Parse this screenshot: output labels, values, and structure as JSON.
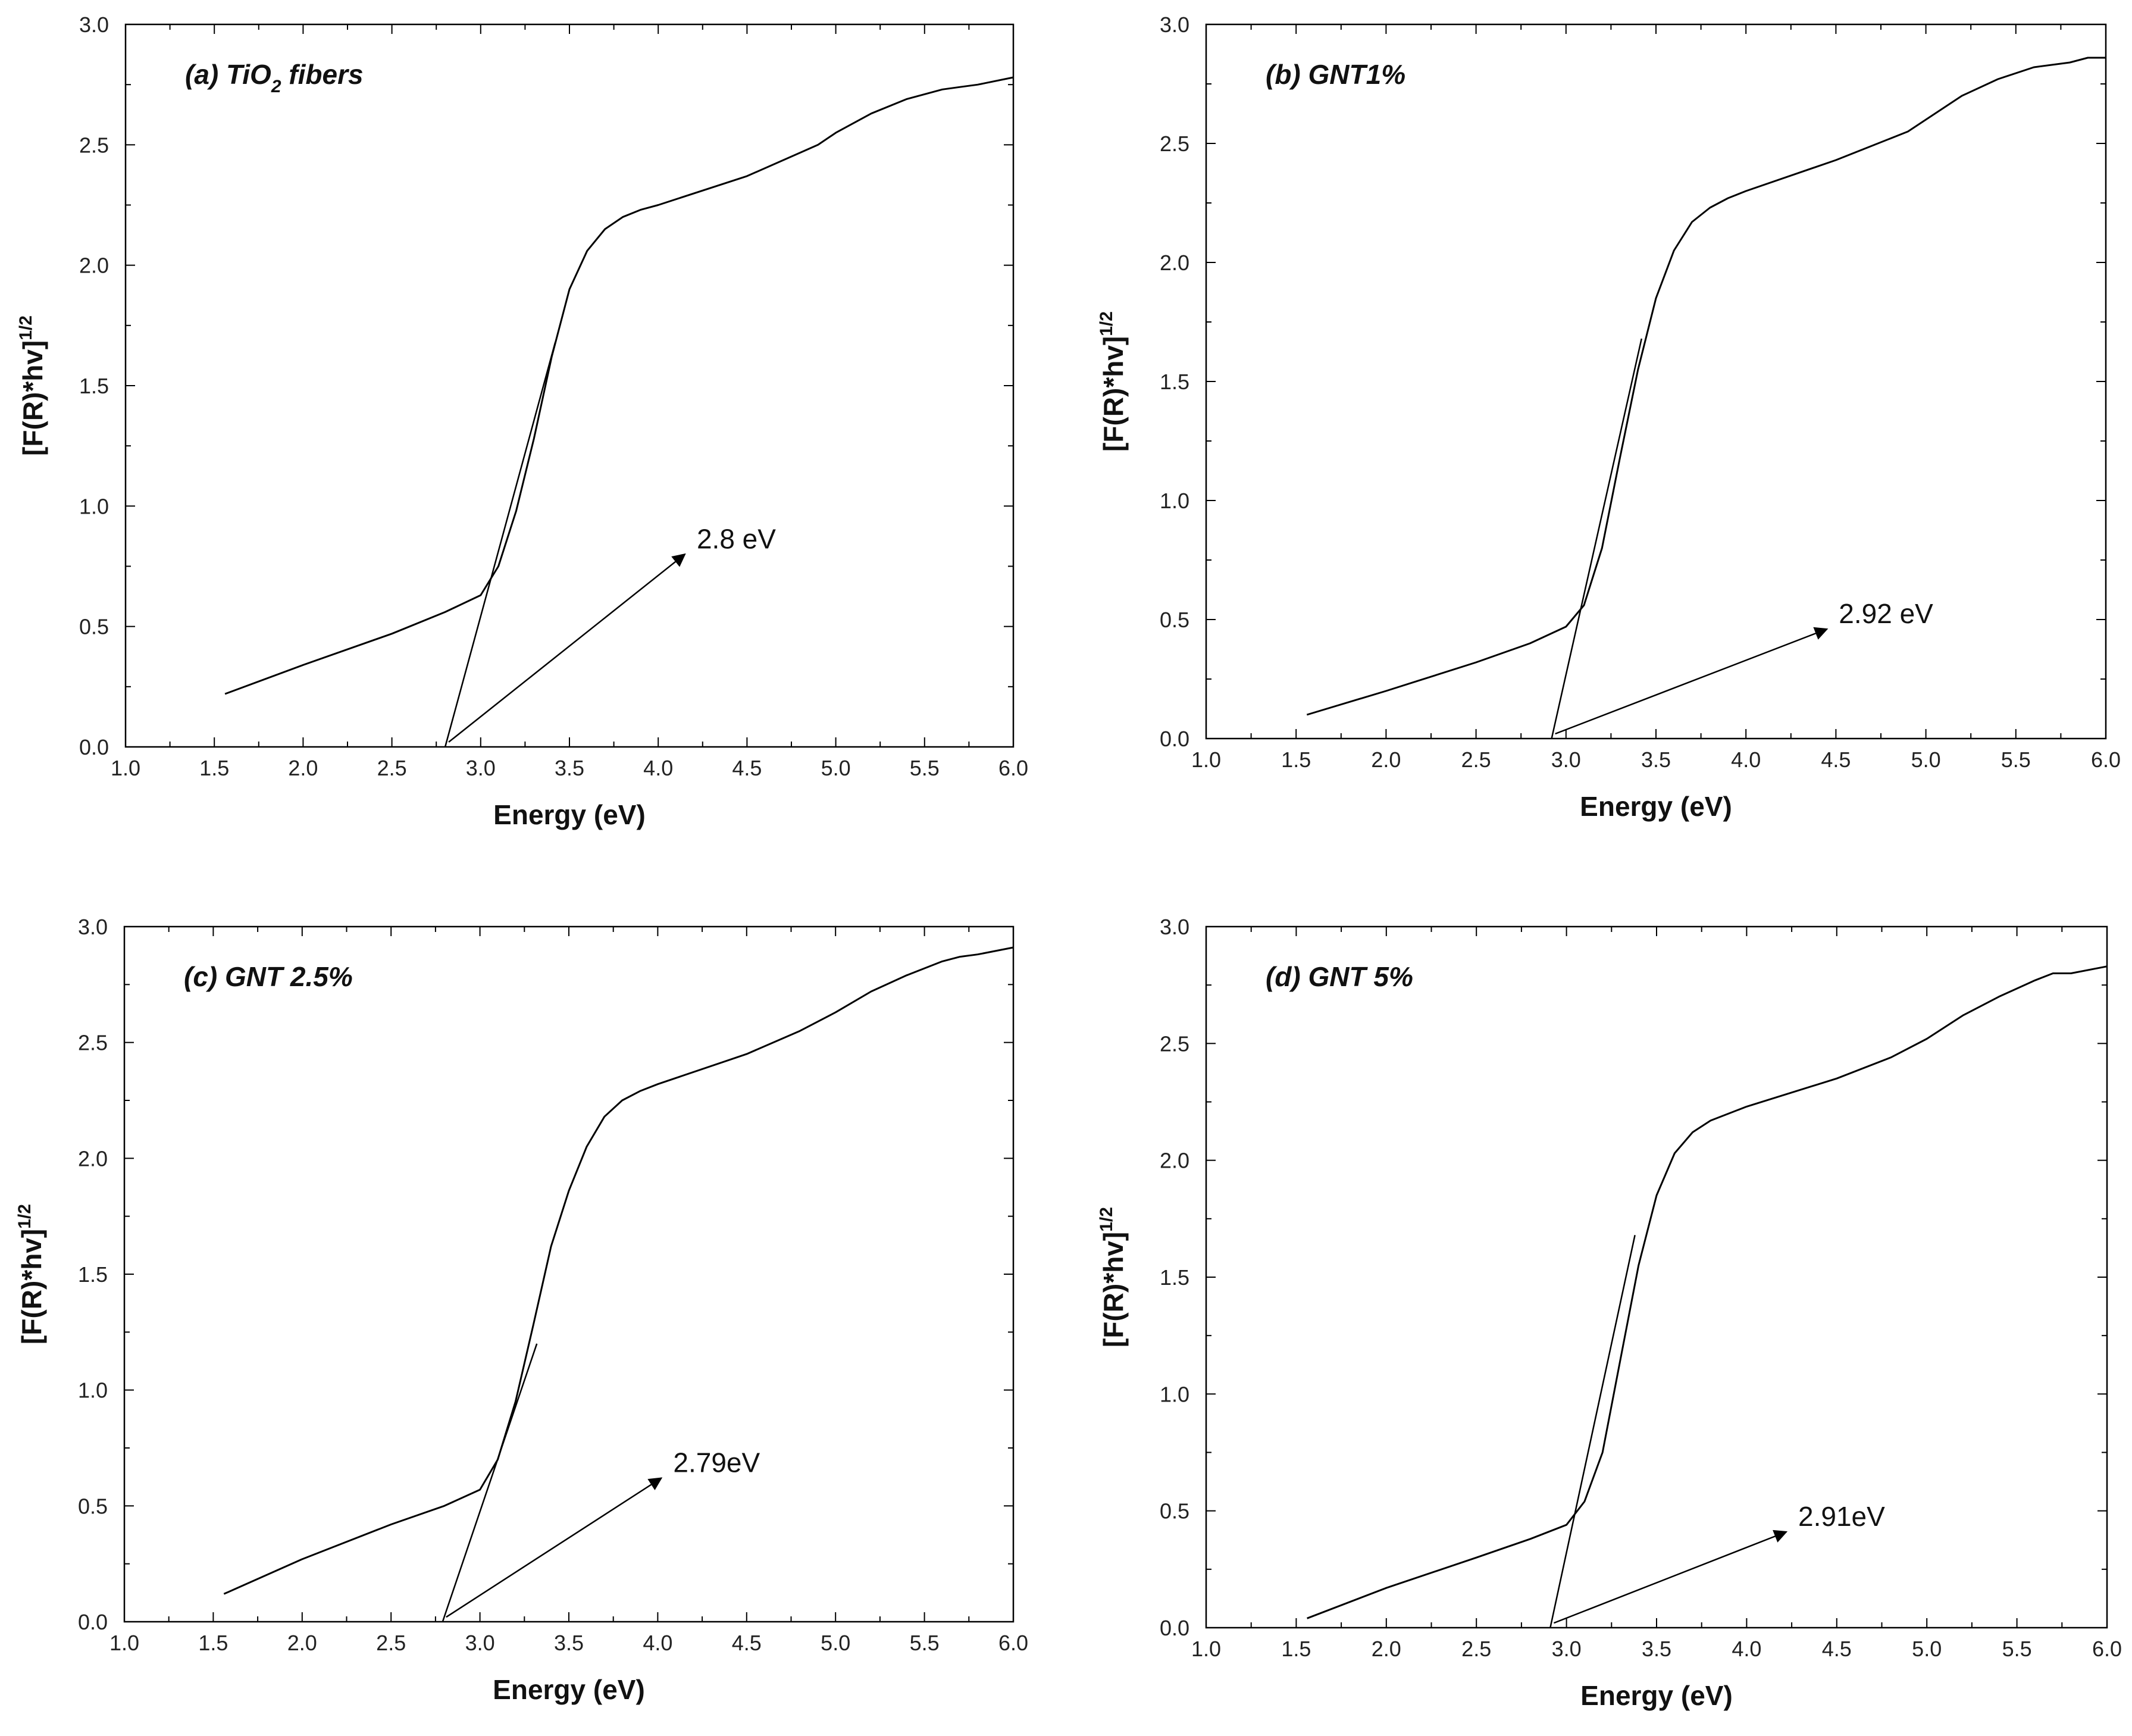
{
  "chart_data": [
    {
      "type": "line",
      "panel_label": "(a) TiO",
      "panel_label_sub": "2",
      "panel_label_suffix": " fibers",
      "xlabel": "Energy (eV)",
      "ylabel": "[F(R)*hv]",
      "ylabel_sup": "1/2",
      "xlim": [
        1.0,
        6.0
      ],
      "ylim": [
        0.0,
        3.0
      ],
      "xticks": [
        "1.0",
        "1.5",
        "2.0",
        "2.5",
        "3.0",
        "3.5",
        "4.0",
        "4.5",
        "5.0",
        "5.5",
        "6.0"
      ],
      "yticks": [
        "0.0",
        "0.5",
        "1.0",
        "1.5",
        "2.0",
        "2.5",
        "3.0"
      ],
      "series": [
        {
          "name": "TiO2 fibers",
          "x": [
            1.56,
            2.0,
            2.5,
            2.8,
            3.0,
            3.1,
            3.2,
            3.3,
            3.4,
            3.5,
            3.6,
            3.7,
            3.8,
            3.9,
            4.0,
            4.5,
            4.9,
            5.0,
            5.2,
            5.4,
            5.6,
            5.7,
            5.8,
            6.0
          ],
          "y": [
            0.22,
            0.34,
            0.47,
            0.56,
            0.63,
            0.75,
            0.98,
            1.28,
            1.62,
            1.9,
            2.06,
            2.15,
            2.2,
            2.23,
            2.25,
            2.37,
            2.5,
            2.55,
            2.63,
            2.69,
            2.73,
            2.74,
            2.75,
            2.78
          ]
        }
      ],
      "tangent": {
        "x": [
          2.8,
          3.42
        ],
        "y": [
          0.0,
          1.68
        ]
      },
      "annotation": {
        "text": "2.8 eV",
        "from": [
          2.82,
          0.02
        ],
        "to": [
          4.15,
          0.8
        ]
      }
    },
    {
      "type": "line",
      "panel_label": "(b) GNT1%",
      "xlabel": "Energy (eV)",
      "ylabel": "[F(R)*hv]",
      "ylabel_sup": "1/2",
      "xlim": [
        1.0,
        6.0
      ],
      "ylim": [
        0.0,
        3.0
      ],
      "xticks": [
        "1.0",
        "1.5",
        "2.0",
        "2.5",
        "3.0",
        "3.5",
        "4.0",
        "4.5",
        "5.0",
        "5.5",
        "6.0"
      ],
      "yticks": [
        "0.0",
        "0.5",
        "1.0",
        "1.5",
        "2.0",
        "2.5",
        "3.0"
      ],
      "series": [
        {
          "name": "GNT1%",
          "x": [
            1.56,
            2.0,
            2.5,
            2.8,
            3.0,
            3.1,
            3.2,
            3.3,
            3.4,
            3.5,
            3.6,
            3.7,
            3.8,
            3.9,
            4.0,
            4.5,
            4.9,
            5.0,
            5.2,
            5.4,
            5.6,
            5.8,
            5.9,
            6.0
          ],
          "y": [
            0.1,
            0.2,
            0.32,
            0.4,
            0.47,
            0.56,
            0.8,
            1.18,
            1.55,
            1.85,
            2.05,
            2.17,
            2.23,
            2.27,
            2.3,
            2.43,
            2.55,
            2.6,
            2.7,
            2.77,
            2.82,
            2.84,
            2.86,
            2.86
          ]
        }
      ],
      "tangent": {
        "x": [
          2.92,
          3.42
        ],
        "y": [
          0.0,
          1.68
        ]
      },
      "annotation": {
        "text": "2.92 eV",
        "from": [
          2.94,
          0.02
        ],
        "to": [
          4.45,
          0.46
        ]
      }
    },
    {
      "type": "line",
      "panel_label": "(c) GNT 2.5%",
      "xlabel": "Energy (eV)",
      "ylabel": "[F(R)*hv]",
      "ylabel_sup": "1/2",
      "xlim": [
        1.0,
        6.0
      ],
      "ylim": [
        0.0,
        3.0
      ],
      "xticks": [
        "1.0",
        "1.5",
        "2.0",
        "2.5",
        "3.0",
        "3.5",
        "4.0",
        "4.5",
        "5.0",
        "5.5",
        "6.0"
      ],
      "yticks": [
        "0.0",
        "0.5",
        "1.0",
        "1.5",
        "2.0",
        "2.5",
        "3.0"
      ],
      "series": [
        {
          "name": "GNT 2.5%",
          "x": [
            1.56,
            2.0,
            2.5,
            2.8,
            3.0,
            3.1,
            3.2,
            3.3,
            3.4,
            3.5,
            3.6,
            3.7,
            3.8,
            3.9,
            4.0,
            4.5,
            4.8,
            5.0,
            5.2,
            5.4,
            5.6,
            5.7,
            5.8,
            6.0
          ],
          "y": [
            0.12,
            0.27,
            0.42,
            0.5,
            0.57,
            0.7,
            0.95,
            1.28,
            1.62,
            1.86,
            2.05,
            2.18,
            2.25,
            2.29,
            2.32,
            2.45,
            2.55,
            2.63,
            2.72,
            2.79,
            2.85,
            2.87,
            2.88,
            2.91
          ]
        }
      ],
      "tangent": {
        "x": [
          2.79,
          3.32
        ],
        "y": [
          0.0,
          1.2
        ]
      },
      "annotation": {
        "text": "2.79eV",
        "from": [
          2.81,
          0.02
        ],
        "to": [
          4.02,
          0.62
        ]
      }
    },
    {
      "type": "line",
      "panel_label": "(d) GNT 5%",
      "xlabel": "Energy (eV)",
      "ylabel": "[F(R)*hv]",
      "ylabel_sup": "1/2",
      "xlim": [
        1.0,
        6.0
      ],
      "ylim": [
        0.0,
        3.0
      ],
      "xticks": [
        "1.0",
        "1.5",
        "2.0",
        "2.5",
        "3.0",
        "3.5",
        "4.0",
        "4.5",
        "5.0",
        "5.5",
        "6.0"
      ],
      "yticks": [
        "0.0",
        "0.5",
        "1.0",
        "1.5",
        "2.0",
        "2.5",
        "3.0"
      ],
      "series": [
        {
          "name": "GNT 5%",
          "x": [
            1.56,
            2.0,
            2.5,
            2.8,
            3.0,
            3.1,
            3.2,
            3.3,
            3.4,
            3.5,
            3.6,
            3.7,
            3.8,
            3.9,
            4.0,
            4.5,
            4.8,
            5.0,
            5.2,
            5.4,
            5.6,
            5.7,
            5.8,
            6.0
          ],
          "y": [
            0.04,
            0.17,
            0.3,
            0.38,
            0.44,
            0.54,
            0.75,
            1.15,
            1.55,
            1.85,
            2.03,
            2.12,
            2.17,
            2.2,
            2.23,
            2.35,
            2.44,
            2.52,
            2.62,
            2.7,
            2.77,
            2.8,
            2.8,
            2.83
          ]
        }
      ],
      "tangent": {
        "x": [
          2.91,
          3.38
        ],
        "y": [
          0.0,
          1.68
        ]
      },
      "annotation": {
        "text": "2.91eV",
        "from": [
          2.93,
          0.02
        ],
        "to": [
          4.22,
          0.41
        ]
      }
    }
  ]
}
